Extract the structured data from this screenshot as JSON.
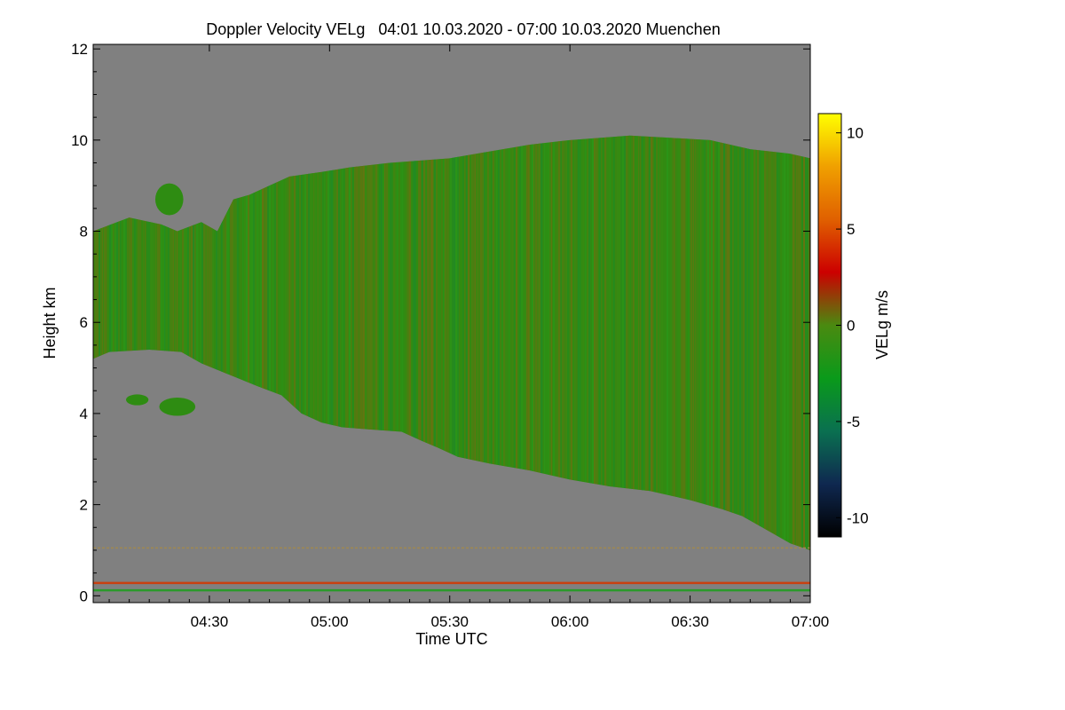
{
  "chart_data": {
    "type": "heatmap",
    "title": "Doppler Velocity VELg   04:01 10.03.2020 - 07:00 10.03.2020 Muenchen",
    "xlabel": "Time UTC",
    "ylabel": "Height km",
    "colorbar_label": "VELg m/s",
    "x_range_minutes_utc": [
      241,
      420
    ],
    "x_ticks": [
      {
        "label": "04:30",
        "minutes": 270
      },
      {
        "label": "05:00",
        "minutes": 300
      },
      {
        "label": "05:30",
        "minutes": 330
      },
      {
        "label": "06:00",
        "minutes": 360
      },
      {
        "label": "06:30",
        "minutes": 390
      },
      {
        "label": "07:00",
        "minutes": 420
      }
    ],
    "ylim": [
      -0.15,
      12.1
    ],
    "y_ticks": [
      {
        "label": "0",
        "value": 0
      },
      {
        "label": "2",
        "value": 2
      },
      {
        "label": "4",
        "value": 4
      },
      {
        "label": "6",
        "value": 6
      },
      {
        "label": "8",
        "value": 8
      },
      {
        "label": "10",
        "value": 10
      },
      {
        "label": "12",
        "value": 12
      }
    ],
    "colorbar_range": [
      -11,
      11
    ],
    "colorbar_ticks": [
      {
        "label": "10",
        "value": 10
      },
      {
        "label": "5",
        "value": 5
      },
      {
        "label": "0",
        "value": 0
      },
      {
        "label": "-5",
        "value": -5
      },
      {
        "label": "-10",
        "value": -10
      }
    ],
    "colorscale": [
      "#000000",
      "#0f2850",
      "#0a7050",
      "#0a9a1a",
      "#4a8a10",
      "#cc0000",
      "#e06000",
      "#f0a000",
      "#ffff00"
    ],
    "background_color": "#808080",
    "cloud_color": "#2e8c12",
    "cloud_top_km": [
      [
        241,
        8.0
      ],
      [
        250,
        8.3
      ],
      [
        258,
        8.15
      ],
      [
        262,
        8.0
      ],
      [
        268,
        8.2
      ],
      [
        272,
        8.0
      ],
      [
        276,
        8.7
      ],
      [
        280,
        8.8
      ],
      [
        285,
        9.0
      ],
      [
        290,
        9.2
      ],
      [
        298,
        9.3
      ],
      [
        305,
        9.4
      ],
      [
        315,
        9.5
      ],
      [
        330,
        9.6
      ],
      [
        340,
        9.75
      ],
      [
        350,
        9.9
      ],
      [
        360,
        10.0
      ],
      [
        375,
        10.1
      ],
      [
        385,
        10.05
      ],
      [
        395,
        10.0
      ],
      [
        400,
        9.9
      ],
      [
        405,
        9.8
      ],
      [
        410,
        9.75
      ],
      [
        415,
        9.7
      ],
      [
        420,
        9.6
      ]
    ],
    "cloud_base_km": [
      [
        241,
        5.2
      ],
      [
        245,
        5.35
      ],
      [
        255,
        5.4
      ],
      [
        263,
        5.35
      ],
      [
        268,
        5.1
      ],
      [
        275,
        4.85
      ],
      [
        282,
        4.6
      ],
      [
        288,
        4.4
      ],
      [
        293,
        4.0
      ],
      [
        298,
        3.8
      ],
      [
        303,
        3.7
      ],
      [
        310,
        3.65
      ],
      [
        318,
        3.6
      ],
      [
        323,
        3.4
      ],
      [
        327,
        3.25
      ],
      [
        332,
        3.05
      ],
      [
        340,
        2.9
      ],
      [
        350,
        2.75
      ],
      [
        360,
        2.55
      ],
      [
        370,
        2.4
      ],
      [
        380,
        2.3
      ],
      [
        390,
        2.1
      ],
      [
        398,
        1.9
      ],
      [
        403,
        1.75
      ],
      [
        410,
        1.4
      ],
      [
        415,
        1.15
      ],
      [
        420,
        1.0
      ]
    ],
    "ice_patches": [
      {
        "center_minutes": 260,
        "center_km": 8.7,
        "half_width_minutes": 3.5,
        "half_height_km": 0.35
      },
      {
        "center_minutes": 252,
        "center_km": 4.3,
        "half_width_minutes": 2.8,
        "half_height_km": 0.12
      },
      {
        "center_minutes": 262,
        "center_km": 4.15,
        "half_width_minutes": 4.5,
        "half_height_km": 0.2
      }
    ],
    "ground_clutter_lines": [
      {
        "height_km": 0.28,
        "color": "#c84010"
      },
      {
        "height_km": 0.12,
        "color": "#2a9a2a"
      },
      {
        "height_km": 1.05,
        "color": "#a08850"
      }
    ]
  }
}
